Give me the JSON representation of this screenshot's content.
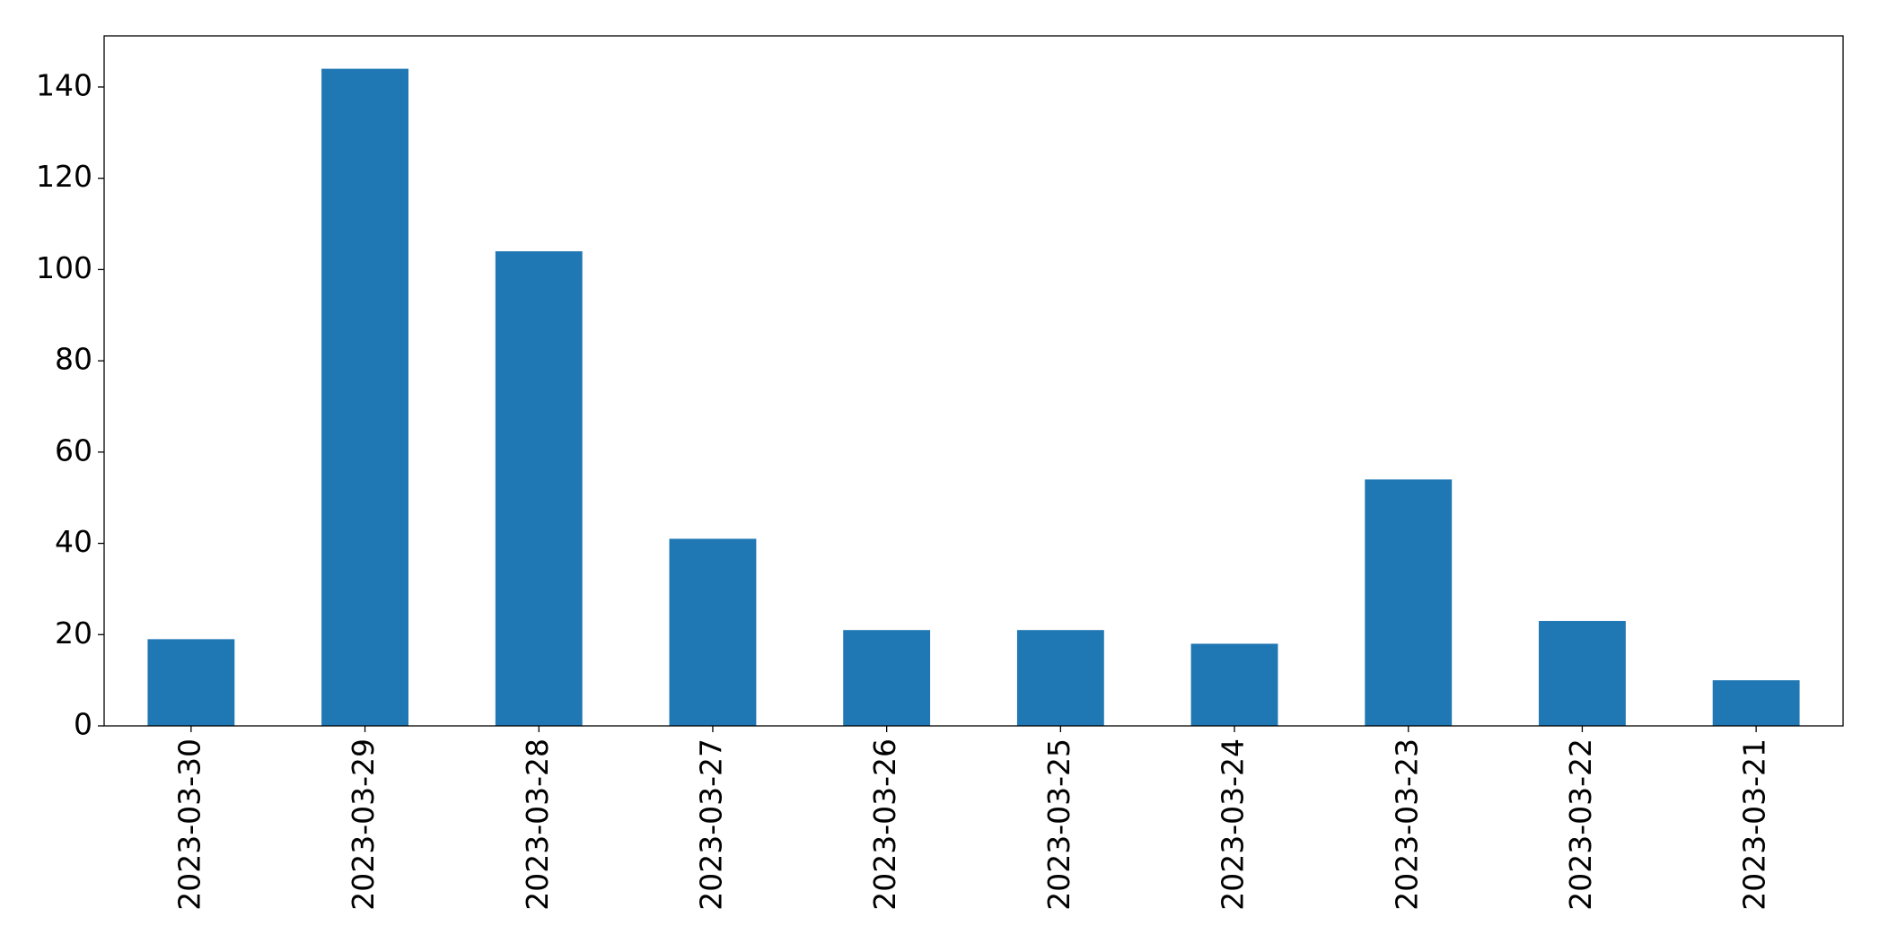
{
  "chart_data": {
    "type": "bar",
    "categories": [
      "2023-03-30",
      "2023-03-29",
      "2023-03-28",
      "2023-03-27",
      "2023-03-26",
      "2023-03-25",
      "2023-03-24",
      "2023-03-23",
      "2023-03-22",
      "2023-03-21"
    ],
    "values": [
      19,
      144,
      104,
      41,
      21,
      21,
      18,
      54,
      23,
      10
    ],
    "color": "#1f77b4",
    "ylim": [
      0,
      151.2
    ],
    "yticks": [
      0,
      20,
      40,
      60,
      80,
      100,
      120,
      140
    ],
    "grid": false
  }
}
